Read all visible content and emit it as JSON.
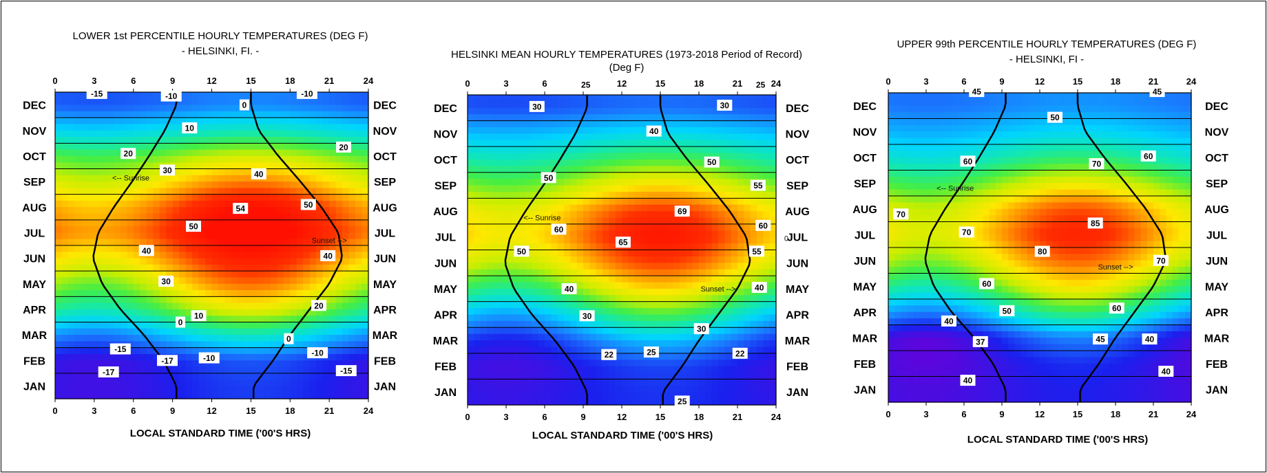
{
  "months": [
    "JAN",
    "FEB",
    "MAR",
    "APR",
    "MAY",
    "JUN",
    "JUL",
    "AUG",
    "SEP",
    "OCT",
    "NOV",
    "DEC"
  ],
  "hour_ticks": [
    "0",
    "3",
    "6",
    "9",
    "12",
    "15",
    "18",
    "21",
    "24"
  ],
  "colors": {
    "scale": [
      "#6a00d8",
      "#1a20ee",
      "#1a7cff",
      "#00d4ff",
      "#12e8b0",
      "#44ee44",
      "#c8ee00",
      "#ffe800",
      "#ff9000",
      "#ff3000",
      "#ff1000"
    ]
  },
  "chart_data": [
    {
      "type": "heatmap",
      "title": "LOWER 1st PERCENTILE HOURLY TEMPERATURES  (DEG F)",
      "subtitle": "- HELSINKI, FI. -",
      "xlabel": "LOCAL STANDARD TIME ('00'S HRS)",
      "ylabel": "",
      "xlim": [
        0,
        24
      ],
      "x_ticks": [
        0,
        3,
        6,
        9,
        12,
        15,
        18,
        21,
        24
      ],
      "y_categories": [
        "JAN",
        "FEB",
        "MAR",
        "APR",
        "MAY",
        "JUN",
        "JUL",
        "AUG",
        "SEP",
        "OCT",
        "NOV",
        "DEC"
      ],
      "color_range": [
        -20,
        56
      ],
      "monthly_mean": [
        -13,
        -12,
        2,
        20,
        32,
        42,
        50,
        46,
        34,
        22,
        6,
        -6
      ],
      "diurnal_amplitude": [
        3,
        4,
        7,
        10,
        12,
        11,
        10,
        10,
        8,
        5,
        3,
        2
      ],
      "contour_labels": [
        {
          "text": "-15",
          "hour": 3.2,
          "month": 11.95
        },
        {
          "text": "-10",
          "hour": 8.9,
          "month": 11.85
        },
        {
          "text": "-10",
          "hour": 19.3,
          "month": 11.95
        },
        {
          "text": "0",
          "hour": 14.5,
          "month": 11.5
        },
        {
          "text": "10",
          "hour": 10.3,
          "month": 10.6
        },
        {
          "text": "20",
          "hour": 5.6,
          "month": 9.6
        },
        {
          "text": "20",
          "hour": 22.1,
          "month": 9.85
        },
        {
          "text": "30",
          "hour": 8.6,
          "month": 8.95
        },
        {
          "text": "40",
          "hour": 15.6,
          "month": 8.8
        },
        {
          "text": "50",
          "hour": 19.4,
          "month": 7.6
        },
        {
          "text": "54",
          "hour": 14.2,
          "month": 7.45
        },
        {
          "text": "50",
          "hour": 10.6,
          "month": 6.75
        },
        {
          "text": "40",
          "hour": 7.0,
          "month": 5.8
        },
        {
          "text": "40",
          "hour": 20.9,
          "month": 5.6
        },
        {
          "text": "30",
          "hour": 8.5,
          "month": 4.6
        },
        {
          "text": "20",
          "hour": 20.2,
          "month": 3.65
        },
        {
          "text": "10",
          "hour": 11.0,
          "month": 3.25
        },
        {
          "text": "0",
          "hour": 9.6,
          "month": 3.0
        },
        {
          "text": "0",
          "hour": 17.9,
          "month": 2.35
        },
        {
          "text": "-15",
          "hour": 5.0,
          "month": 1.95
        },
        {
          "text": "-17",
          "hour": 8.6,
          "month": 1.5
        },
        {
          "text": "-10",
          "hour": 11.8,
          "month": 1.6
        },
        {
          "text": "-10",
          "hour": 20.1,
          "month": 1.8
        },
        {
          "text": "-17",
          "hour": 4.1,
          "month": 1.05
        },
        {
          "text": "-15",
          "hour": 22.3,
          "month": 1.1
        }
      ],
      "annotations": [
        {
          "text": "<-- Sunrise",
          "hour": 5.8,
          "month": 8.65
        },
        {
          "text": "Sunset -->",
          "hour": 21.0,
          "month": 6.2
        }
      ]
    },
    {
      "type": "heatmap",
      "title": "HELSINKI MEAN HOURLY TEMPERATURES (1973-2018 Period of Record)",
      "subtitle": "(Deg F)",
      "xlabel": "LOCAL STANDARD TIME ('00'S HRS)",
      "ylabel": "",
      "xlim": [
        0,
        24
      ],
      "x_ticks": [
        0,
        3,
        6,
        9,
        12,
        15,
        18,
        21,
        24
      ],
      "y_categories": [
        "JAN",
        "FEB",
        "MAR",
        "APR",
        "MAY",
        "JUN",
        "JUL",
        "AUG",
        "SEP",
        "OCT",
        "NOV",
        "DEC"
      ],
      "color_range": [
        18,
        72
      ],
      "monthly_mean": [
        23,
        23,
        28,
        38,
        49,
        58,
        63,
        60,
        51,
        42,
        34,
        27
      ],
      "diurnal_amplitude": [
        1.5,
        2.5,
        5,
        7,
        8,
        8,
        8,
        7,
        5,
        3,
        1.5,
        1
      ],
      "contour_labels": [
        {
          "text": "25",
          "hour": 9.2,
          "month": 12.4
        },
        {
          "text": "25",
          "hour": 22.8,
          "month": 12.4
        },
        {
          "text": "30",
          "hour": 5.4,
          "month": 11.55
        },
        {
          "text": "30",
          "hour": 20.0,
          "month": 11.6
        },
        {
          "text": "40",
          "hour": 14.5,
          "month": 10.6
        },
        {
          "text": "50",
          "hour": 19.0,
          "month": 9.4
        },
        {
          "text": "50",
          "hour": 6.3,
          "month": 8.8
        },
        {
          "text": "55",
          "hour": 22.6,
          "month": 8.5
        },
        {
          "text": "69",
          "hour": 16.7,
          "month": 7.5
        },
        {
          "text": "60",
          "hour": 7.1,
          "month": 6.8
        },
        {
          "text": "60",
          "hour": 23.0,
          "month": 6.95
        },
        {
          "text": "65",
          "hour": 12.1,
          "month": 6.3
        },
        {
          "text": "50",
          "hour": 4.2,
          "month": 5.95
        },
        {
          "text": "55",
          "hour": 22.5,
          "month": 5.95
        },
        {
          "text": "40",
          "hour": 7.9,
          "month": 4.5
        },
        {
          "text": "40",
          "hour": 22.7,
          "month": 4.55
        },
        {
          "text": "30",
          "hour": 9.3,
          "month": 3.45
        },
        {
          "text": "30",
          "hour": 18.2,
          "month": 2.95
        },
        {
          "text": "22",
          "hour": 11.0,
          "month": 1.95
        },
        {
          "text": "25",
          "hour": 14.3,
          "month": 2.05
        },
        {
          "text": "22",
          "hour": 21.2,
          "month": 2.0
        },
        {
          "text": "25",
          "hour": 16.7,
          "month": 0.15
        }
      ],
      "annotations": [
        {
          "text": "<-- Sunrise",
          "hour": 5.8,
          "month": 7.25
        },
        {
          "text": "Sunset -->",
          "hour": 19.5,
          "month": 4.5
        },
        {
          "text": "0",
          "hour": 24.8,
          "month": 6.45
        }
      ]
    },
    {
      "type": "heatmap",
      "title": "UPPER 99th PERCENTILE HOURLY TEMPERATURES  (DEG F)",
      "subtitle": "- HELSINKI, FI -",
      "xlabel": "LOCAL STANDARD TIME ('00'S HRS)",
      "ylabel": "",
      "xlim": [
        0,
        24
      ],
      "x_ticks": [
        0,
        3,
        6,
        9,
        12,
        15,
        18,
        21,
        24
      ],
      "y_categories": [
        "JAN",
        "FEB",
        "MAR",
        "APR",
        "MAY",
        "JUN",
        "JUL",
        "AUG",
        "SEP",
        "OCT",
        "NOV",
        "DEC"
      ],
      "color_range": [
        35,
        88
      ],
      "monthly_mean": [
        38.5,
        38.5,
        41,
        53,
        64,
        72,
        77,
        74,
        65,
        56,
        50,
        46
      ],
      "diurnal_amplitude": [
        1.5,
        2.5,
        5,
        7,
        8,
        8,
        8,
        7,
        5,
        3,
        1.5,
        1
      ],
      "contour_labels": [
        {
          "text": "45",
          "hour": 7.0,
          "month": 12.05
        },
        {
          "text": "45",
          "hour": 21.3,
          "month": 12.05
        },
        {
          "text": "50",
          "hour": 13.2,
          "month": 11.05
        },
        {
          "text": "60",
          "hour": 6.3,
          "month": 9.35
        },
        {
          "text": "70",
          "hour": 16.5,
          "month": 9.25
        },
        {
          "text": "60",
          "hour": 20.6,
          "month": 9.55
        },
        {
          "text": "70",
          "hour": 1.0,
          "month": 7.3
        },
        {
          "text": "85",
          "hour": 16.4,
          "month": 6.95
        },
        {
          "text": "70",
          "hour": 6.2,
          "month": 6.6
        },
        {
          "text": "80",
          "hour": 12.2,
          "month": 5.85
        },
        {
          "text": "70",
          "hour": 21.6,
          "month": 5.5
        },
        {
          "text": "60",
          "hour": 7.8,
          "month": 4.6
        },
        {
          "text": "50",
          "hour": 9.4,
          "month": 3.55
        },
        {
          "text": "60",
          "hour": 18.1,
          "month": 3.65
        },
        {
          "text": "40",
          "hour": 4.8,
          "month": 3.15
        },
        {
          "text": "45",
          "hour": 16.8,
          "month": 2.45
        },
        {
          "text": "40",
          "hour": 20.7,
          "month": 2.45
        },
        {
          "text": "37",
          "hour": 7.3,
          "month": 2.35
        },
        {
          "text": "40",
          "hour": 6.3,
          "month": 0.85
        },
        {
          "text": "40",
          "hour": 22.0,
          "month": 1.2
        }
      ],
      "annotations": [
        {
          "text": "<-- Sunrise",
          "hour": 5.3,
          "month": 8.3
        },
        {
          "text": "Sunset -->",
          "hour": 18.0,
          "month": 5.25
        }
      ]
    }
  ]
}
